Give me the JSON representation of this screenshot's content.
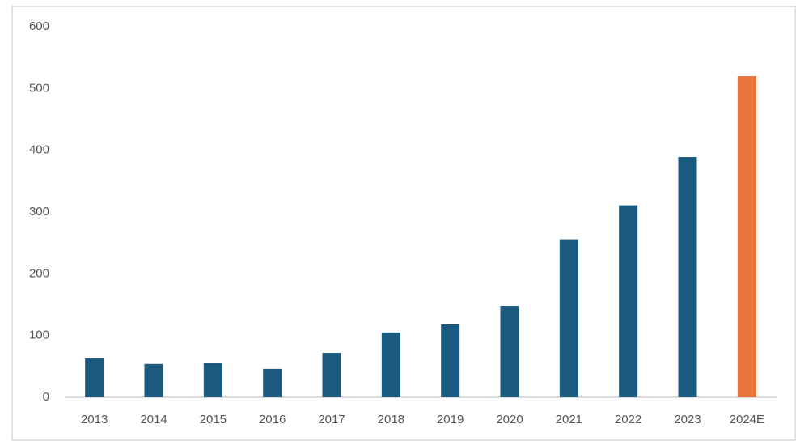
{
  "chart_data": {
    "type": "bar",
    "categories": [
      "2013",
      "2014",
      "2015",
      "2016",
      "2017",
      "2018",
      "2019",
      "2020",
      "2021",
      "2022",
      "2023",
      "2024E"
    ],
    "values": [
      63,
      54,
      56,
      46,
      72,
      105,
      118,
      148,
      256,
      311,
      389,
      520
    ],
    "colors": [
      "#1b5a7f",
      "#1b5a7f",
      "#1b5a7f",
      "#1b5a7f",
      "#1b5a7f",
      "#1b5a7f",
      "#1b5a7f",
      "#1b5a7f",
      "#1b5a7f",
      "#1b5a7f",
      "#1b5a7f",
      "#e8743b"
    ],
    "ylim": [
      0,
      600
    ],
    "yticks": [
      0,
      100,
      200,
      300,
      400,
      500,
      600
    ],
    "grid": false
  }
}
